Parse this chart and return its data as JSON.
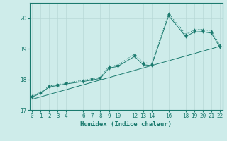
{
  "xlabel": "Humidex (Indice chaleur)",
  "bg_color": "#ceecea",
  "line_color": "#1a7a6e",
  "grid_color": "#b8d8d6",
  "x_ticks": [
    0,
    1,
    2,
    3,
    4,
    6,
    7,
    8,
    9,
    10,
    12,
    13,
    14,
    16,
    18,
    19,
    20,
    21,
    22
  ],
  "line1_x": [
    0,
    1,
    2,
    3,
    4,
    6,
    7,
    8,
    9,
    10,
    12,
    13,
    14,
    16,
    18,
    19,
    20,
    21,
    22
  ],
  "line1_y": [
    17.45,
    17.58,
    17.78,
    17.83,
    17.88,
    17.97,
    18.02,
    18.07,
    18.42,
    18.47,
    18.82,
    18.55,
    18.52,
    20.15,
    19.47,
    19.62,
    19.63,
    19.58,
    19.12
  ],
  "line2_x": [
    0,
    1,
    2,
    3,
    4,
    6,
    7,
    8,
    9,
    10,
    12,
    13,
    14,
    16,
    18,
    19,
    20,
    21,
    22
  ],
  "line2_y": [
    17.42,
    17.55,
    17.75,
    17.8,
    17.85,
    17.93,
    17.98,
    18.03,
    18.37,
    18.42,
    18.75,
    18.48,
    18.45,
    20.08,
    19.4,
    19.55,
    19.56,
    19.51,
    19.05
  ],
  "line3_x": [
    0,
    22
  ],
  "line3_y": [
    17.35,
    19.08
  ],
  "ylim": [
    17.0,
    20.5
  ],
  "xlim": [
    -0.3,
    22.3
  ],
  "yticks": [
    17,
    18,
    19,
    20
  ]
}
